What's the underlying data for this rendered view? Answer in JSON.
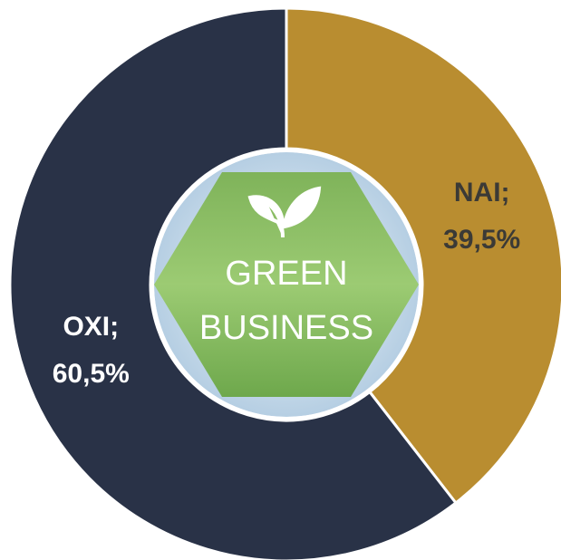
{
  "chart_data": {
    "type": "donut",
    "categories": [
      "NAI;",
      "OXI;"
    ],
    "values": [
      39.5,
      60.5
    ],
    "value_labels": [
      "39,5%",
      "60,5%"
    ],
    "colors": [
      "#b98d30",
      "#293247"
    ],
    "center_text": [
      "GREEN",
      "BUSINESS"
    ]
  }
}
